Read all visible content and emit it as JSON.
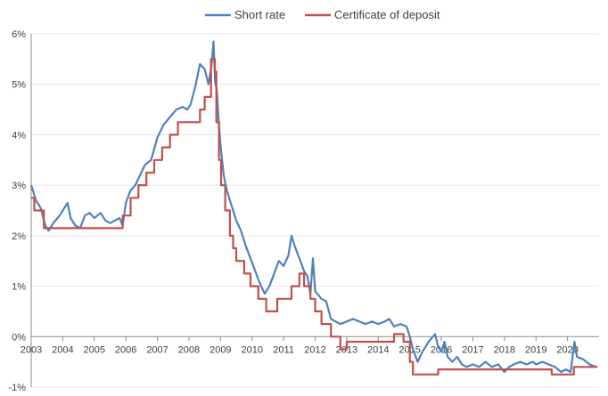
{
  "chart_data": {
    "type": "line",
    "title": "",
    "xlabel": "",
    "ylabel": "",
    "xlim": [
      2003,
      2021
    ],
    "ylim": [
      -1,
      6
    ],
    "y_ticks": [
      {
        "value": -1,
        "label": "-1%"
      },
      {
        "value": 0,
        "label": "0%"
      },
      {
        "value": 1,
        "label": "1%"
      },
      {
        "value": 2,
        "label": "2%"
      },
      {
        "value": 3,
        "label": "3%"
      },
      {
        "value": 4,
        "label": "4%"
      },
      {
        "value": 5,
        "label": "5%"
      },
      {
        "value": 6,
        "label": "6%"
      }
    ],
    "x_ticks": [
      {
        "value": 2003,
        "label": "2003"
      },
      {
        "value": 2004,
        "label": "2004"
      },
      {
        "value": 2005,
        "label": "2005"
      },
      {
        "value": 2006,
        "label": "2006"
      },
      {
        "value": 2007,
        "label": "2007"
      },
      {
        "value": 2008,
        "label": "2008"
      },
      {
        "value": 2009,
        "label": "2009"
      },
      {
        "value": 2010,
        "label": "2010"
      },
      {
        "value": 2011,
        "label": "2011"
      },
      {
        "value": 2012,
        "label": "2012"
      },
      {
        "value": 2013,
        "label": "2013"
      },
      {
        "value": 2014,
        "label": "2014"
      },
      {
        "value": 2015,
        "label": "2015"
      },
      {
        "value": 2016,
        "label": "2016"
      },
      {
        "value": 2017,
        "label": "2017"
      },
      {
        "value": 2018,
        "label": "2018"
      },
      {
        "value": 2019,
        "label": "2019"
      },
      {
        "value": 2020,
        "label": "2020"
      }
    ],
    "grid": true,
    "legend": "top-center",
    "series": [
      {
        "name": "Short rate",
        "color": "#4f81bd",
        "points": [
          [
            2003.0,
            3.0
          ],
          [
            2003.15,
            2.7
          ],
          [
            2003.3,
            2.55
          ],
          [
            2003.45,
            2.2
          ],
          [
            2003.55,
            2.1
          ],
          [
            2003.7,
            2.25
          ],
          [
            2003.9,
            2.4
          ],
          [
            2004.05,
            2.55
          ],
          [
            2004.15,
            2.65
          ],
          [
            2004.25,
            2.35
          ],
          [
            2004.4,
            2.2
          ],
          [
            2004.55,
            2.15
          ],
          [
            2004.7,
            2.4
          ],
          [
            2004.85,
            2.45
          ],
          [
            2005.0,
            2.35
          ],
          [
            2005.2,
            2.45
          ],
          [
            2005.35,
            2.3
          ],
          [
            2005.5,
            2.25
          ],
          [
            2005.65,
            2.3
          ],
          [
            2005.8,
            2.35
          ],
          [
            2005.9,
            2.2
          ],
          [
            2006.0,
            2.65
          ],
          [
            2006.15,
            2.9
          ],
          [
            2006.3,
            3.0
          ],
          [
            2006.45,
            3.2
          ],
          [
            2006.6,
            3.4
          ],
          [
            2006.8,
            3.5
          ],
          [
            2007.0,
            3.95
          ],
          [
            2007.2,
            4.2
          ],
          [
            2007.4,
            4.35
          ],
          [
            2007.6,
            4.5
          ],
          [
            2007.8,
            4.55
          ],
          [
            2007.95,
            4.5
          ],
          [
            2008.05,
            4.6
          ],
          [
            2008.2,
            4.95
          ],
          [
            2008.35,
            5.4
          ],
          [
            2008.5,
            5.3
          ],
          [
            2008.62,
            5.0
          ],
          [
            2008.72,
            5.4
          ],
          [
            2008.78,
            5.85
          ],
          [
            2008.83,
            5.05
          ],
          [
            2008.88,
            4.9
          ],
          [
            2008.95,
            4.2
          ],
          [
            2009.0,
            3.8
          ],
          [
            2009.1,
            3.2
          ],
          [
            2009.2,
            2.9
          ],
          [
            2009.35,
            2.6
          ],
          [
            2009.5,
            2.3
          ],
          [
            2009.65,
            2.1
          ],
          [
            2009.8,
            1.8
          ],
          [
            2009.95,
            1.55
          ],
          [
            2010.1,
            1.3
          ],
          [
            2010.25,
            1.05
          ],
          [
            2010.4,
            0.85
          ],
          [
            2010.55,
            1.0
          ],
          [
            2010.7,
            1.25
          ],
          [
            2010.85,
            1.5
          ],
          [
            2011.0,
            1.4
          ],
          [
            2011.15,
            1.6
          ],
          [
            2011.25,
            2.0
          ],
          [
            2011.35,
            1.8
          ],
          [
            2011.5,
            1.55
          ],
          [
            2011.65,
            1.3
          ],
          [
            2011.75,
            1.2
          ],
          [
            2011.85,
            0.85
          ],
          [
            2011.93,
            1.55
          ],
          [
            2012.0,
            0.9
          ],
          [
            2012.2,
            0.75
          ],
          [
            2012.35,
            0.7
          ],
          [
            2012.5,
            0.35
          ],
          [
            2012.65,
            0.3
          ],
          [
            2012.8,
            0.25
          ],
          [
            2013.0,
            0.3
          ],
          [
            2013.2,
            0.35
          ],
          [
            2013.4,
            0.3
          ],
          [
            2013.6,
            0.25
          ],
          [
            2013.8,
            0.3
          ],
          [
            2014.0,
            0.25
          ],
          [
            2014.2,
            0.3
          ],
          [
            2014.35,
            0.35
          ],
          [
            2014.5,
            0.2
          ],
          [
            2014.7,
            0.25
          ],
          [
            2014.9,
            0.2
          ],
          [
            2015.0,
            0.0
          ],
          [
            2015.1,
            -0.25
          ],
          [
            2015.25,
            -0.5
          ],
          [
            2015.4,
            -0.3
          ],
          [
            2015.6,
            -0.1
          ],
          [
            2015.8,
            0.05
          ],
          [
            2015.9,
            -0.2
          ],
          [
            2016.0,
            -0.3
          ],
          [
            2016.1,
            -0.1
          ],
          [
            2016.2,
            -0.4
          ],
          [
            2016.35,
            -0.5
          ],
          [
            2016.5,
            -0.4
          ],
          [
            2016.65,
            -0.55
          ],
          [
            2016.8,
            -0.6
          ],
          [
            2017.0,
            -0.55
          ],
          [
            2017.2,
            -0.6
          ],
          [
            2017.4,
            -0.5
          ],
          [
            2017.6,
            -0.6
          ],
          [
            2017.8,
            -0.55
          ],
          [
            2018.0,
            -0.7
          ],
          [
            2018.15,
            -0.6
          ],
          [
            2018.3,
            -0.55
          ],
          [
            2018.5,
            -0.5
          ],
          [
            2018.7,
            -0.55
          ],
          [
            2018.9,
            -0.5
          ],
          [
            2019.0,
            -0.55
          ],
          [
            2019.2,
            -0.5
          ],
          [
            2019.4,
            -0.55
          ],
          [
            2019.6,
            -0.6
          ],
          [
            2019.8,
            -0.7
          ],
          [
            2019.95,
            -0.65
          ],
          [
            2020.1,
            -0.7
          ],
          [
            2020.22,
            -0.1
          ],
          [
            2020.3,
            -0.4
          ],
          [
            2020.5,
            -0.45
          ],
          [
            2020.7,
            -0.55
          ],
          [
            2020.9,
            -0.6
          ]
        ]
      },
      {
        "name": "Certificate of deposit",
        "color": "#c0504d",
        "points": [
          [
            2003.0,
            2.75
          ],
          [
            2003.1,
            2.75
          ],
          [
            2003.1,
            2.5
          ],
          [
            2003.4,
            2.5
          ],
          [
            2003.4,
            2.15
          ],
          [
            2005.9,
            2.15
          ],
          [
            2005.9,
            2.4
          ],
          [
            2006.15,
            2.4
          ],
          [
            2006.15,
            2.75
          ],
          [
            2006.4,
            2.75
          ],
          [
            2006.4,
            3.0
          ],
          [
            2006.65,
            3.0
          ],
          [
            2006.65,
            3.25
          ],
          [
            2006.9,
            3.25
          ],
          [
            2006.9,
            3.5
          ],
          [
            2007.15,
            3.5
          ],
          [
            2007.15,
            3.75
          ],
          [
            2007.4,
            3.75
          ],
          [
            2007.4,
            4.0
          ],
          [
            2007.65,
            4.0
          ],
          [
            2007.65,
            4.25
          ],
          [
            2008.35,
            4.25
          ],
          [
            2008.35,
            4.5
          ],
          [
            2008.5,
            4.5
          ],
          [
            2008.5,
            4.75
          ],
          [
            2008.7,
            4.75
          ],
          [
            2008.7,
            5.5
          ],
          [
            2008.82,
            5.5
          ],
          [
            2008.82,
            5.25
          ],
          [
            2008.87,
            5.25
          ],
          [
            2008.87,
            4.25
          ],
          [
            2008.95,
            4.25
          ],
          [
            2008.95,
            3.5
          ],
          [
            2009.02,
            3.5
          ],
          [
            2009.02,
            3.0
          ],
          [
            2009.15,
            3.0
          ],
          [
            2009.15,
            2.5
          ],
          [
            2009.3,
            2.5
          ],
          [
            2009.3,
            2.0
          ],
          [
            2009.4,
            2.0
          ],
          [
            2009.4,
            1.75
          ],
          [
            2009.5,
            1.75
          ],
          [
            2009.5,
            1.5
          ],
          [
            2009.75,
            1.5
          ],
          [
            2009.75,
            1.25
          ],
          [
            2009.95,
            1.25
          ],
          [
            2009.95,
            1.0
          ],
          [
            2010.2,
            1.0
          ],
          [
            2010.2,
            0.75
          ],
          [
            2010.45,
            0.75
          ],
          [
            2010.45,
            0.5
          ],
          [
            2010.8,
            0.5
          ],
          [
            2010.8,
            0.75
          ],
          [
            2011.25,
            0.75
          ],
          [
            2011.25,
            1.0
          ],
          [
            2011.5,
            1.0
          ],
          [
            2011.5,
            1.25
          ],
          [
            2011.65,
            1.25
          ],
          [
            2011.65,
            1.0
          ],
          [
            2011.85,
            1.0
          ],
          [
            2011.85,
            0.75
          ],
          [
            2012.0,
            0.75
          ],
          [
            2012.0,
            0.5
          ],
          [
            2012.2,
            0.5
          ],
          [
            2012.2,
            0.25
          ],
          [
            2012.5,
            0.25
          ],
          [
            2012.5,
            0.0
          ],
          [
            2012.8,
            0.0
          ],
          [
            2012.8,
            -0.25
          ],
          [
            2013.0,
            -0.25
          ],
          [
            2013.0,
            -0.1
          ],
          [
            2014.5,
            -0.1
          ],
          [
            2014.5,
            0.05
          ],
          [
            2014.8,
            0.05
          ],
          [
            2014.8,
            -0.1
          ],
          [
            2015.0,
            -0.1
          ],
          [
            2015.0,
            -0.5
          ],
          [
            2015.1,
            -0.5
          ],
          [
            2015.1,
            -0.75
          ],
          [
            2015.9,
            -0.75
          ],
          [
            2015.9,
            -0.65
          ],
          [
            2019.5,
            -0.65
          ],
          [
            2019.5,
            -0.75
          ],
          [
            2020.2,
            -0.75
          ],
          [
            2020.2,
            -0.6
          ],
          [
            2020.95,
            -0.6
          ]
        ]
      }
    ]
  }
}
